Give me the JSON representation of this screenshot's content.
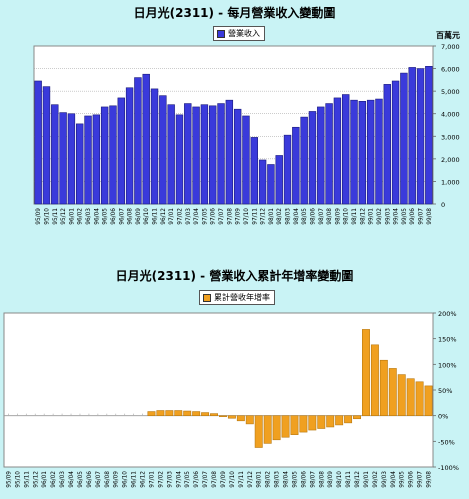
{
  "chart_data": [
    {
      "type": "bar",
      "title": "日月光(2311) - 每月營業收入變動圖",
      "ylabel": "百萬元",
      "legend": "營業收入",
      "legend_position": "top-center",
      "color": "#3a3adb",
      "ylim": [
        0,
        7000
      ],
      "yticks": [
        "0",
        "1,000",
        "2,000",
        "3,000",
        "4,000",
        "5,000",
        "6,000",
        "7,000"
      ],
      "categories": [
        "95/09",
        "95/10",
        "95/11",
        "95/12",
        "96/01",
        "96/02",
        "96/03",
        "96/04",
        "96/05",
        "96/06",
        "96/07",
        "96/08",
        "96/09",
        "96/10",
        "96/11",
        "96/12",
        "97/01",
        "97/02",
        "97/03",
        "97/04",
        "97/05",
        "97/06",
        "97/07",
        "97/08",
        "97/09",
        "97/10",
        "97/11",
        "97/12",
        "98/01",
        "98/02",
        "98/03",
        "98/04",
        "98/05",
        "98/06",
        "98/07",
        "98/08",
        "98/09",
        "98/10",
        "98/11",
        "98/12",
        "99/01",
        "99/02",
        "99/03",
        "99/04",
        "99/05",
        "99/06",
        "99/07",
        "99/08"
      ],
      "values": [
        5450,
        5200,
        4400,
        4050,
        4000,
        3550,
        3900,
        3950,
        4300,
        4350,
        4700,
        5150,
        5600,
        5750,
        5100,
        4800,
        4400,
        3950,
        4450,
        4300,
        4400,
        4350,
        4450,
        4600,
        4200,
        3900,
        2950,
        1950,
        1750,
        2150,
        3050,
        3400,
        3850,
        4100,
        4300,
        4450,
        4700,
        4850,
        4600,
        4550,
        4600,
        4650,
        5300,
        5450,
        5800,
        6050,
        6000,
        6100
      ]
    },
    {
      "type": "bar",
      "title": "日月光(2311) - 營業收入累計年增率變動圖",
      "legend": "累計營收年增率",
      "legend_position": "top-center",
      "color": "#f0a020",
      "ylim": [
        -100,
        200
      ],
      "yticks": [
        "-100%",
        "-50%",
        "0%",
        "50%",
        "100%",
        "150%",
        "200%"
      ],
      "categories": [
        "95/09",
        "95/10",
        "95/11",
        "95/12",
        "96/01",
        "96/02",
        "96/03",
        "96/04",
        "96/05",
        "96/06",
        "96/07",
        "96/08",
        "96/09",
        "96/10",
        "96/11",
        "96/12",
        "97/01",
        "97/02",
        "97/03",
        "97/04",
        "97/05",
        "97/06",
        "97/07",
        "97/08",
        "97/09",
        "97/10",
        "97/11",
        "97/12",
        "98/01",
        "98/02",
        "98/03",
        "98/04",
        "98/05",
        "98/06",
        "98/07",
        "98/08",
        "98/09",
        "98/10",
        "98/11",
        "98/12",
        "99/01",
        "99/02",
        "99/03",
        "99/04",
        "99/05",
        "99/06",
        "99/07",
        "99/08"
      ],
      "values": [
        0,
        0,
        0,
        0,
        0,
        0,
        0,
        0,
        0,
        0,
        0,
        0,
        0,
        0,
        0,
        0,
        8,
        10,
        10,
        10,
        9,
        8,
        6,
        4,
        -2,
        -5,
        -10,
        -16,
        -62,
        -54,
        -47,
        -42,
        -37,
        -32,
        -28,
        -25,
        -22,
        -18,
        -14,
        -6,
        168,
        138,
        108,
        92,
        80,
        72,
        66,
        58
      ]
    }
  ]
}
